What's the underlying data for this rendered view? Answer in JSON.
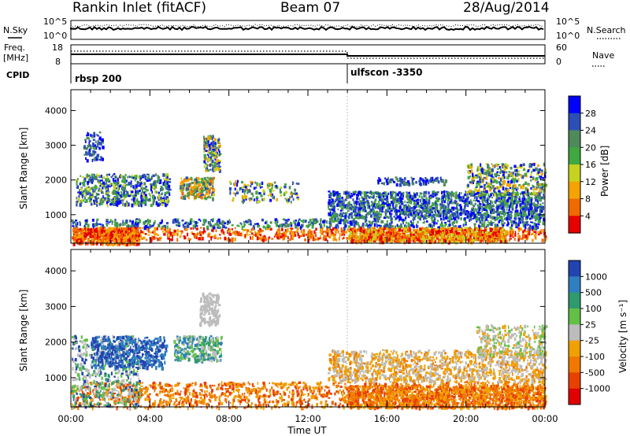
{
  "header": {
    "title": "Rankin Inlet (fitACF)",
    "beam": "Beam 07",
    "date": "28/Aug/2014"
  },
  "top_strip": {
    "nsky_label": "N.Sky",
    "nsearch_label": "N.Search",
    "left_ticks": [
      "10^5",
      "10^0"
    ],
    "right_ticks": [
      "10^5",
      "10^0"
    ],
    "freq_label_line1": "Freq.",
    "freq_label_line2": "[MHz]",
    "freq_ticks": [
      "18",
      "8"
    ],
    "nave_label": "Nave",
    "nave_ticks": [
      "60",
      "0"
    ],
    "cpid_label": "CPID",
    "cpid_segments": [
      "rbsp 200",
      "ulfscon -3350"
    ]
  },
  "axes": {
    "ylabel": "Slant Range [km]",
    "xlabel": "Time UT",
    "yticks": [
      "4000",
      "3000",
      "2000",
      "1000"
    ],
    "xticks": [
      "00:00",
      "04:00",
      "08:00",
      "12:00",
      "16:00",
      "20:00",
      "00:00"
    ]
  },
  "colors": {
    "power": [
      "#0000ff",
      "#2b4fb5",
      "#4f8a5a",
      "#3fa83f",
      "#c6d21f",
      "#f5a300",
      "#f06a00",
      "#e60000"
    ],
    "velocity": [
      "#2244b0",
      "#2e7fbf",
      "#2e9a6e",
      "#63c046",
      "#bcbcbc",
      "#f0a000",
      "#f07800",
      "#e84000",
      "#e00000"
    ]
  },
  "chart_data": [
    {
      "type": "heatmap",
      "name": "power_panel",
      "xlabel": "Time UT",
      "ylabel": "Slant Range [km]",
      "xlim": [
        0,
        24
      ],
      "ylim": [
        180,
        4600
      ],
      "colorbar": {
        "label": "Power [dB]",
        "ticks": [
          "28",
          "24",
          "20",
          "16",
          "12",
          "8",
          "4"
        ],
        "range": [
          0,
          30
        ]
      }
    },
    {
      "type": "heatmap",
      "name": "velocity_panel",
      "xlabel": "Time UT",
      "ylabel": "Slant Range [km]",
      "xlim": [
        0,
        24
      ],
      "ylim": [
        180,
        4600
      ],
      "colorbar": {
        "label": "Velocity [m s⁻¹]",
        "ticks": [
          "1000",
          "500",
          "100",
          "25",
          "-25",
          "-100",
          "-500",
          "-1000"
        ],
        "range": [
          -1000,
          1000
        ]
      }
    }
  ]
}
